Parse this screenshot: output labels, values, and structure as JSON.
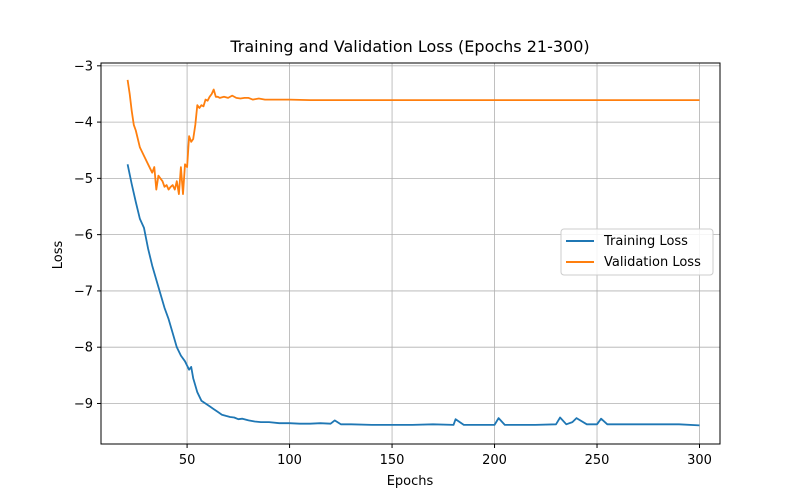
{
  "chart_data": {
    "type": "line",
    "title": "Training and Validation Loss (Epochs 21-300)",
    "xlabel": "Epochs",
    "ylabel": "Loss",
    "xlim": [
      8,
      310
    ],
    "ylim": [
      -9.72,
      -2.95
    ],
    "xticks": [
      50,
      100,
      150,
      200,
      250,
      300
    ],
    "yticks": [
      -9,
      -8,
      -7,
      -6,
      -5,
      -4,
      -3
    ],
    "xtick_labels": [
      "50",
      "100",
      "150",
      "200",
      "250",
      "300"
    ],
    "ytick_labels": [
      "−9",
      "−8",
      "−7",
      "−6",
      "−5",
      "−4",
      "−3"
    ],
    "grid": true,
    "legend_position": "center-right",
    "series": [
      {
        "name": "Training Loss",
        "color": "#1f77b4",
        "x": [
          21,
          23,
          25,
          27,
          29,
          31,
          33,
          35,
          37,
          39,
          41,
          43,
          45,
          47,
          49,
          51,
          52,
          53,
          55,
          57,
          59,
          61,
          63,
          65,
          67,
          69,
          71,
          73,
          75,
          77,
          80,
          83,
          86,
          90,
          95,
          100,
          105,
          110,
          115,
          120,
          122,
          125,
          130,
          140,
          150,
          160,
          170,
          180,
          181,
          185,
          190,
          200,
          202,
          205,
          210,
          220,
          230,
          232,
          235,
          238,
          240,
          245,
          250,
          252,
          255,
          260,
          270,
          280,
          290,
          300
        ],
        "y": [
          -4.75,
          -5.1,
          -5.42,
          -5.72,
          -5.88,
          -6.25,
          -6.55,
          -6.8,
          -7.05,
          -7.3,
          -7.5,
          -7.75,
          -8.0,
          -8.15,
          -8.25,
          -8.4,
          -8.35,
          -8.55,
          -8.8,
          -8.95,
          -9.0,
          -9.05,
          -9.1,
          -9.15,
          -9.2,
          -9.22,
          -9.24,
          -9.25,
          -9.28,
          -9.27,
          -9.3,
          -9.32,
          -9.33,
          -9.33,
          -9.35,
          -9.35,
          -9.36,
          -9.36,
          -9.35,
          -9.36,
          -9.3,
          -9.37,
          -9.37,
          -9.38,
          -9.38,
          -9.38,
          -9.37,
          -9.38,
          -9.28,
          -9.38,
          -9.38,
          -9.38,
          -9.26,
          -9.38,
          -9.38,
          -9.38,
          -9.37,
          -9.25,
          -9.37,
          -9.33,
          -9.26,
          -9.37,
          -9.37,
          -9.27,
          -9.37,
          -9.37,
          -9.37,
          -9.37,
          -9.37,
          -9.39
        ]
      },
      {
        "name": "Validation Loss",
        "color": "#ff7f0e",
        "x": [
          21,
          22,
          23,
          24,
          25,
          27,
          29,
          31,
          33,
          34,
          35,
          36,
          37,
          38,
          39,
          40,
          41,
          42,
          43,
          44,
          45,
          46,
          47,
          48,
          49,
          50,
          51,
          52,
          53,
          54,
          55,
          56,
          57,
          58,
          59,
          60,
          61,
          62,
          63,
          64,
          65,
          66,
          68,
          70,
          72,
          74,
          76,
          78,
          80,
          82,
          85,
          88,
          90,
          95,
          100,
          110,
          120,
          150,
          200,
          250,
          300
        ],
        "y": [
          -3.25,
          -3.5,
          -3.8,
          -4.05,
          -4.15,
          -4.45,
          -4.6,
          -4.75,
          -4.9,
          -4.8,
          -5.2,
          -4.95,
          -5.0,
          -5.05,
          -5.15,
          -5.12,
          -5.2,
          -5.15,
          -5.12,
          -5.2,
          -5.05,
          -5.28,
          -4.8,
          -5.28,
          -4.75,
          -4.8,
          -4.25,
          -4.35,
          -4.3,
          -4.05,
          -3.7,
          -3.75,
          -3.7,
          -3.72,
          -3.6,
          -3.62,
          -3.55,
          -3.5,
          -3.42,
          -3.55,
          -3.55,
          -3.57,
          -3.55,
          -3.57,
          -3.53,
          -3.57,
          -3.58,
          -3.57,
          -3.57,
          -3.6,
          -3.58,
          -3.6,
          -3.6,
          -3.6,
          -3.6,
          -3.61,
          -3.61,
          -3.61,
          -3.61,
          -3.61,
          -3.61
        ]
      }
    ]
  }
}
